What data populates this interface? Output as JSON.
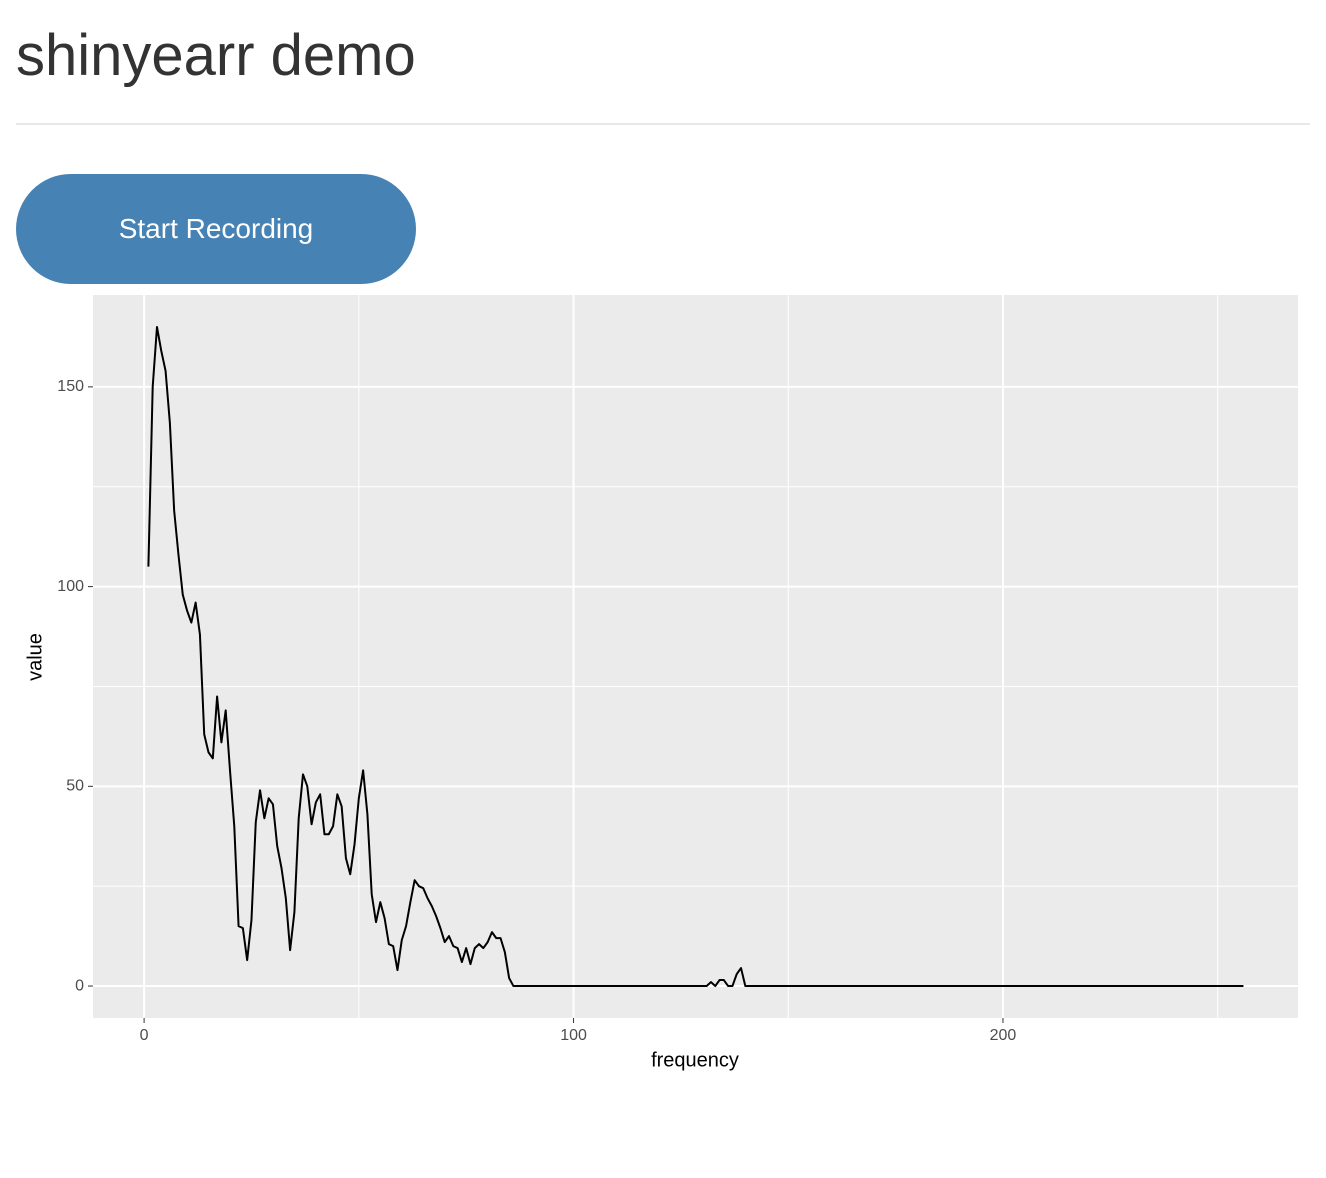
{
  "header": {
    "title": "shinyearr demo"
  },
  "button": {
    "label": "Start Recording"
  },
  "chart_data": {
    "type": "line",
    "x_label": "frequency",
    "y_label": "value",
    "color": "#000000",
    "x": [
      1,
      2,
      3,
      4,
      5,
      6,
      7,
      8,
      9,
      10,
      11,
      12,
      13,
      14,
      15,
      16,
      17,
      18,
      19,
      20,
      21,
      22,
      23,
      24,
      25,
      26,
      27,
      28,
      29,
      30,
      31,
      32,
      33,
      34,
      35,
      36,
      37,
      38,
      39,
      40,
      41,
      42,
      43,
      44,
      45,
      46,
      47,
      48,
      49,
      50,
      51,
      52,
      53,
      54,
      55,
      56,
      57,
      58,
      59,
      60,
      61,
      62,
      63,
      64,
      65,
      66,
      67,
      68,
      69,
      70,
      71,
      72,
      73,
      74,
      75,
      76,
      77,
      78,
      79,
      80,
      81,
      82,
      83,
      84,
      85,
      86,
      131,
      132,
      133,
      134,
      135,
      136,
      137,
      138,
      139,
      140,
      256
    ],
    "values": [
      105,
      150,
      165,
      159,
      154,
      141,
      119,
      108,
      98,
      94,
      91,
      96,
      88,
      63,
      58.5,
      57,
      72.5,
      61,
      69,
      54,
      40,
      15,
      14.5,
      6.5,
      16.5,
      41,
      49,
      42,
      47,
      45.5,
      35,
      29.5,
      22,
      9,
      18.5,
      42,
      53,
      50,
      40.5,
      46,
      48,
      38,
      38,
      40,
      48,
      45,
      32,
      28,
      35.5,
      47,
      54,
      43,
      23,
      16,
      21,
      17,
      10.5,
      10,
      4,
      11.5,
      15,
      21,
      26.5,
      25,
      24.5,
      22,
      20,
      17.5,
      14.5,
      11,
      12.5,
      10,
      9.5,
      6,
      9.5,
      5.5,
      9.5,
      10.5,
      9.5,
      11,
      13.5,
      12,
      12,
      8.5,
      2,
      0,
      0,
      1,
      0,
      1.5,
      1.5,
      0,
      0,
      3,
      4.5,
      0,
      0
    ],
    "xlim": [
      -11.9,
      268.7
    ],
    "ylim": [
      -8,
      173
    ],
    "xticks": [
      0,
      100,
      200
    ],
    "yticks": [
      0,
      50,
      100,
      150
    ],
    "minor_xticks": [
      50,
      150,
      250
    ],
    "minor_yticks": [
      25,
      75,
      125
    ],
    "grid": true,
    "background": "#ebebeb"
  }
}
